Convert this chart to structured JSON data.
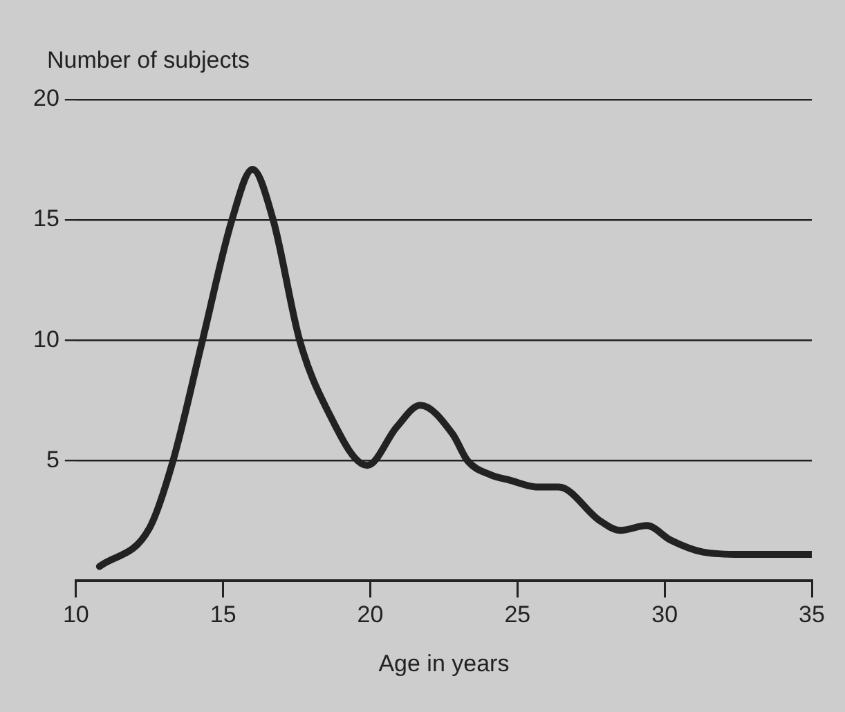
{
  "chart_data": {
    "type": "line",
    "ylabel": "Number of subjects",
    "xlabel": "Age in years",
    "xlim": [
      10,
      35
    ],
    "xticks": [
      10,
      15,
      20,
      25,
      30,
      35
    ],
    "ylim": [
      0,
      20
    ],
    "yticks": [
      5,
      10,
      15,
      20
    ],
    "grid": "y",
    "legend": false,
    "marker": "none",
    "line_style": "solid",
    "series": [
      {
        "color": "#222222",
        "x": [
          10.8,
          12.5,
          13.3,
          14.3,
          15.3,
          16.0,
          16.7,
          17.6,
          18.5,
          19.9,
          20.9,
          21.7,
          22.8,
          23.3,
          24.1,
          24.7,
          25.7,
          26.4,
          27.8,
          28.5,
          29.4,
          30.2,
          31.3,
          32.6,
          35
        ],
        "values": [
          0.6,
          2.2,
          5,
          10,
          15,
          17.1,
          15,
          10,
          7.2,
          4.8,
          6.4,
          7.3,
          6.1,
          5,
          4.4,
          4.2,
          3.9,
          3.9,
          2.5,
          2.1,
          2.3,
          1.7,
          1.2,
          1.1,
          1.1
        ]
      }
    ]
  }
}
